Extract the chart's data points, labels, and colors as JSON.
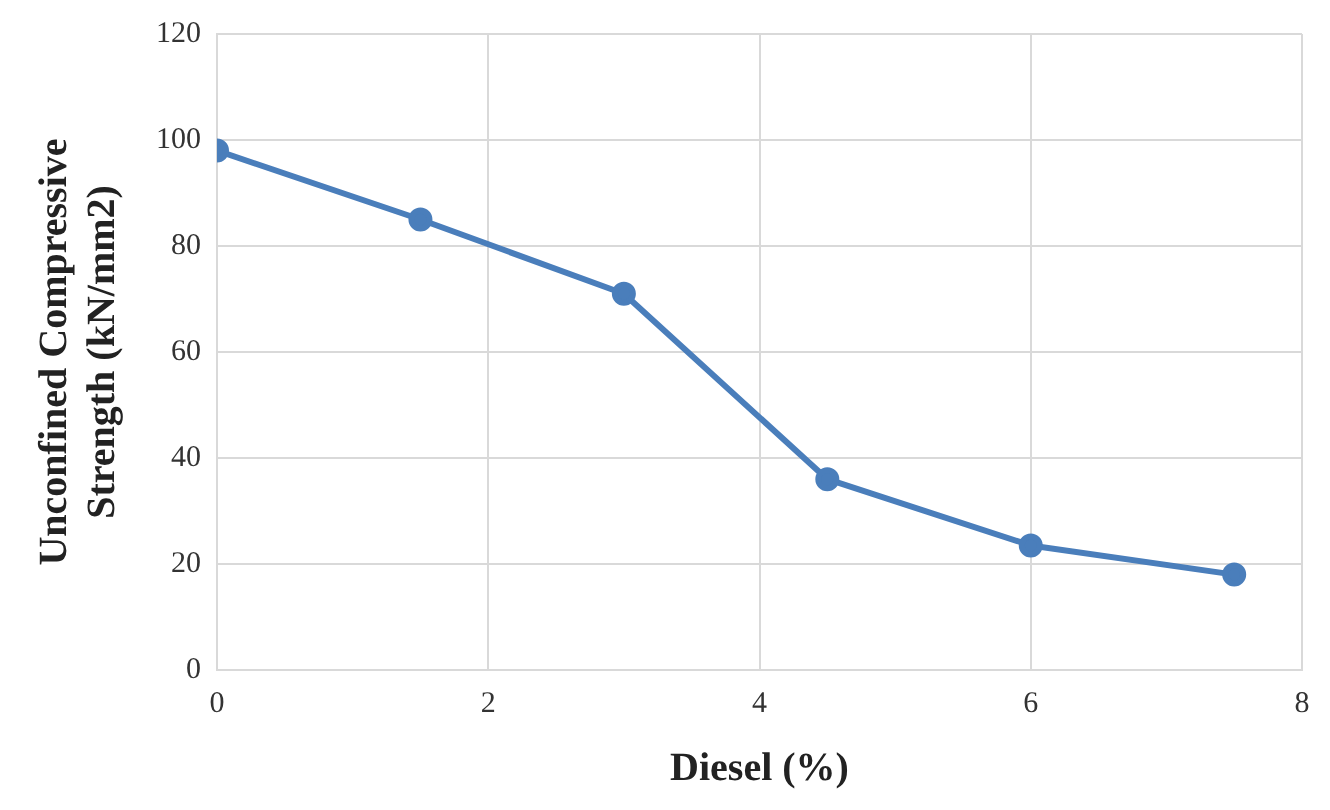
{
  "chart_data": {
    "type": "line",
    "xlabel": "Diesel (%)",
    "ylabel": "Unconfined Compressive Strength (kN/mm2)",
    "x": [
      0,
      1.5,
      3,
      4.5,
      6,
      7.5
    ],
    "series": [
      {
        "color": "#4a7ebb",
        "values": [
          98,
          85,
          71,
          36,
          23.5,
          18
        ]
      }
    ],
    "xlim": [
      0,
      8
    ],
    "xticks": [
      0,
      2,
      4,
      6,
      8
    ],
    "ylim": [
      0,
      120
    ],
    "yticks": [
      0,
      20,
      40,
      60,
      80,
      100,
      120
    ],
    "grid": true,
    "legend": false,
    "marker": "circle",
    "line_style": "solid"
  }
}
